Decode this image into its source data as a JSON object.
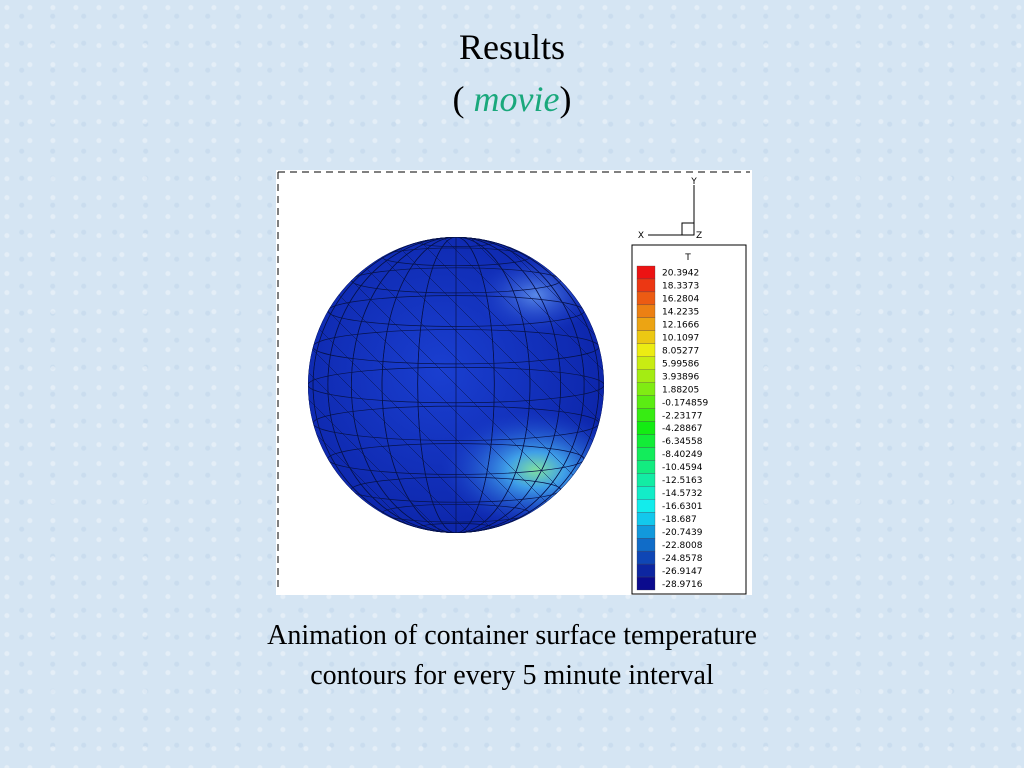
{
  "slide": {
    "title": "Results",
    "subtitle": {
      "open": "(",
      "link": "movie",
      "close": ")"
    },
    "figure": {
      "axes": {
        "y": "Y",
        "x": "X",
        "z": "Z"
      },
      "legend": {
        "title": "T",
        "values": [
          "20.3942",
          "18.3373",
          "16.2804",
          "14.2235",
          "12.1666",
          "10.1097",
          "8.05277",
          "5.99586",
          "3.93896",
          "1.88205",
          "-0.174859",
          "-2.23177",
          "-4.28867",
          "-6.34558",
          "-8.40249",
          "-10.4594",
          "-12.5163",
          "-14.5732",
          "-16.6301",
          "-18.687",
          "-20.7439",
          "-22.8008",
          "-24.8578",
          "-26.9147",
          "-28.9716"
        ]
      }
    },
    "caption": [
      "Animation of container surface temperature",
      "contours for every 5 minute interval"
    ]
  }
}
